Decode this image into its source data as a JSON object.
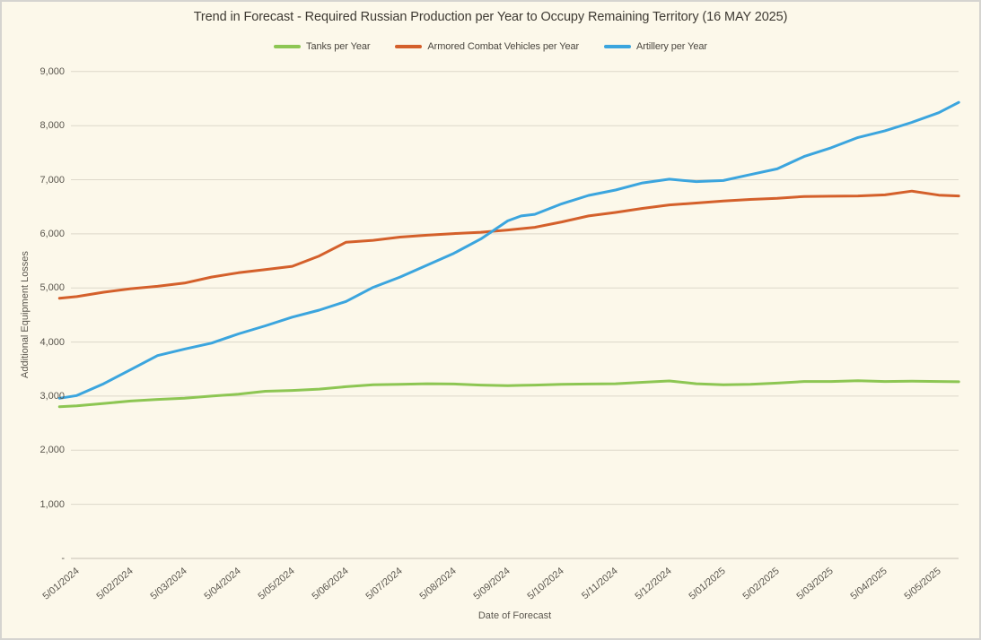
{
  "title": "Trend in Forecast - Required Russian Production per Year to Occupy Remaining Territory (16 MAY 2025)",
  "chart_data": {
    "type": "line",
    "title": "Trend in Forecast - Required Russian Production per Year to Occupy Remaining Territory (16 MAY 2025)",
    "xlabel": "Date of Forecast",
    "ylabel": "Additional Equipment Losses",
    "ylim": [
      0,
      9000
    ],
    "grid": true,
    "legend_position": "top-center",
    "y_tick_values": [
      0,
      1000,
      2000,
      3000,
      4000,
      5000,
      6000,
      7000,
      8000,
      9000
    ],
    "y_tick_labels": [
      "-",
      "1,000",
      "2,000",
      "3,000",
      "4,000",
      "5,000",
      "6,000",
      "7,000",
      "8,000",
      "9,000"
    ],
    "x_tick_labels": [
      "5/01/2024",
      "5/02/2024",
      "5/03/2024",
      "5/04/2024",
      "5/05/2024",
      "5/06/2024",
      "5/07/2024",
      "5/08/2024",
      "5/09/2024",
      "5/10/2024",
      "5/11/2024",
      "5/12/2024",
      "5/01/2025",
      "5/02/2025",
      "5/03/2025",
      "5/04/2025",
      "5/05/2025"
    ],
    "x_months_since_first_tick": [
      -0.32,
      0,
      0.5,
      1,
      1.5,
      2,
      2.5,
      3,
      3.5,
      4,
      4.5,
      5,
      5.5,
      6,
      6.5,
      7,
      7.5,
      8,
      8.25,
      8.5,
      9,
      9.5,
      10,
      10.5,
      11,
      11.5,
      12,
      12.5,
      13,
      13.5,
      14,
      14.5,
      15,
      15.5,
      16,
      16.37
    ],
    "series": [
      {
        "name": "Tanks per Year",
        "color": "#8dc653",
        "values": [
          2805,
          2820,
          2865,
          2910,
          2940,
          2960,
          3000,
          3035,
          3090,
          3105,
          3130,
          3175,
          3210,
          3220,
          3230,
          3225,
          3205,
          3195,
          3200,
          3205,
          3220,
          3225,
          3230,
          3255,
          3280,
          3230,
          3210,
          3220,
          3240,
          3270,
          3270,
          3285,
          3270,
          3275,
          3270,
          3265
        ]
      },
      {
        "name": "Armored Combat Vehicles per Year",
        "color": "#d4602b",
        "values": [
          4810,
          4840,
          4920,
          4985,
          5030,
          5090,
          5200,
          5280,
          5340,
          5400,
          5590,
          5845,
          5880,
          5940,
          5975,
          6005,
          6030,
          6070,
          6095,
          6120,
          6220,
          6330,
          6395,
          6470,
          6535,
          6570,
          6605,
          6635,
          6655,
          6690,
          6695,
          6700,
          6720,
          6790,
          6715,
          6700
        ]
      },
      {
        "name": "Artillery per Year",
        "color": "#3ba5de",
        "values": [
          2960,
          3010,
          3230,
          3490,
          3750,
          3870,
          3980,
          4150,
          4300,
          4460,
          4590,
          4750,
          5010,
          5200,
          5420,
          5640,
          5905,
          6240,
          6330,
          6360,
          6555,
          6710,
          6810,
          6940,
          7010,
          6965,
          6985,
          7095,
          7200,
          7430,
          7590,
          7780,
          7905,
          8060,
          8240,
          8430
        ]
      }
    ]
  },
  "colors": {
    "background": "#fcf8ea",
    "gridline": "#ddd8ca",
    "axis_line": "#c6c1b4",
    "title_text": "#3e3a33",
    "tick_text": "#5a564e",
    "border": "#d5d4d0"
  }
}
